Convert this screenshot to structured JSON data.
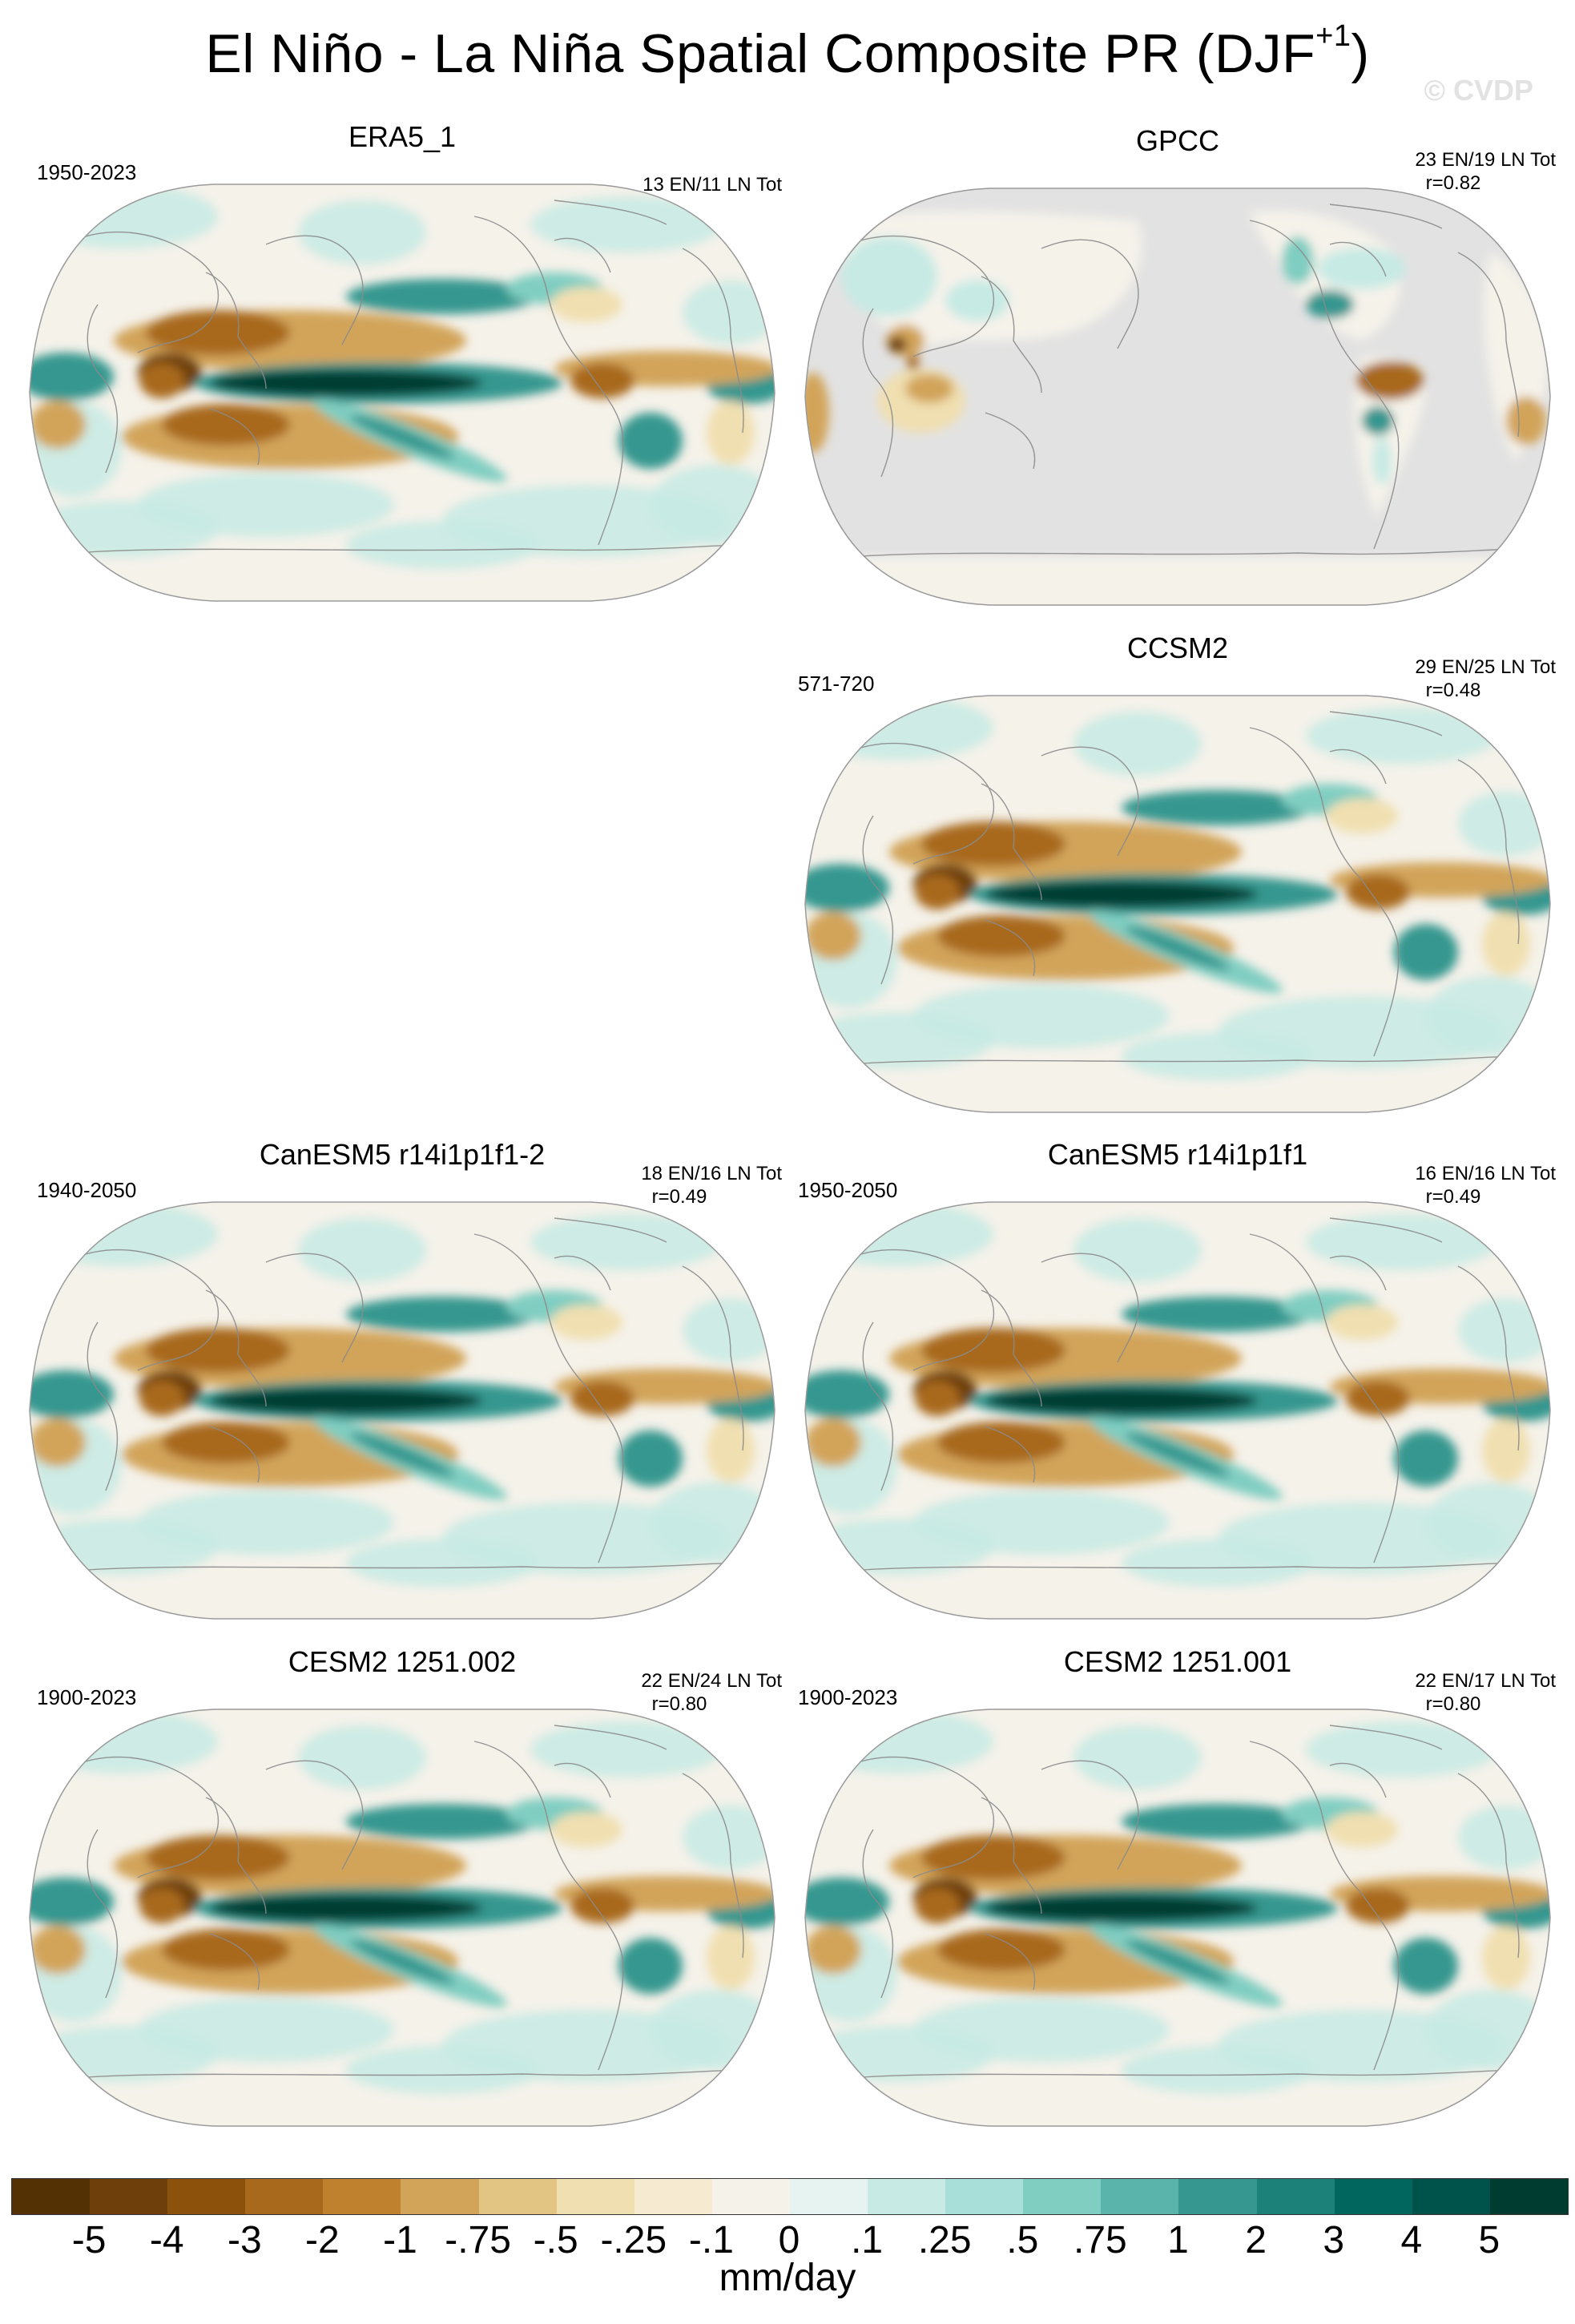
{
  "title": {
    "main": "El Niño - La Niña Spatial Composite PR (DJF",
    "sup": "+1",
    "close": ")"
  },
  "watermark": "© CVDP",
  "panels": [
    {
      "id": "era5",
      "name": "ERA5_1",
      "years": "1950-2023",
      "stats": "13 EN/11 LN Tot",
      "corr": "",
      "masked_ocean": false
    },
    {
      "id": "gpcc",
      "name": "GPCC",
      "years": "",
      "stats": "23 EN/19 LN Tot",
      "corr": "r=0.82",
      "masked_ocean": true
    },
    {
      "id": "ccsm2",
      "name": "CCSM2",
      "years": "571-720",
      "stats": "29 EN/25 LN Tot",
      "corr": "r=0.48",
      "masked_ocean": false
    },
    {
      "id": "canesm5a",
      "name": "CanESM5 r14i1p1f1-2",
      "years": "1940-2050",
      "stats": "18 EN/16 LN Tot",
      "corr": "r=0.49",
      "masked_ocean": false
    },
    {
      "id": "canesm5b",
      "name": "CanESM5 r14i1p1f1",
      "years": "1950-2050",
      "stats": "16 EN/16 LN Tot",
      "corr": "r=0.49",
      "masked_ocean": false
    },
    {
      "id": "cesm2a",
      "name": "CESM2 1251.002",
      "years": "1900-2023",
      "stats": "22 EN/24 LN Tot",
      "corr": "r=0.80",
      "masked_ocean": false
    },
    {
      "id": "cesm2b",
      "name": "CESM2 1251.001",
      "years": "1900-2023",
      "stats": "22 EN/17 LN Tot",
      "corr": "r=0.80",
      "masked_ocean": false
    }
  ],
  "colorbar": {
    "labels": [
      "-5",
      "-4",
      "-3",
      "-2",
      "-1",
      "-.75",
      "-.5",
      "-.25",
      "-.1",
      "0",
      ".1",
      ".25",
      ".5",
      ".75",
      "1",
      "2",
      "3",
      "4",
      "5"
    ],
    "colors": [
      "#543005",
      "#6e3f0b",
      "#8c510a",
      "#a8691c",
      "#bf812d",
      "#d2a45a",
      "#e3c583",
      "#f0dfb0",
      "#f6ead0",
      "#f5f2ea",
      "#e6f3f1",
      "#c7eae4",
      "#a8e0d9",
      "#80cdc1",
      "#5ab4ac",
      "#35978f",
      "#1c8178",
      "#01665e",
      "#00534b",
      "#003c30"
    ],
    "units": "mm/day"
  }
}
